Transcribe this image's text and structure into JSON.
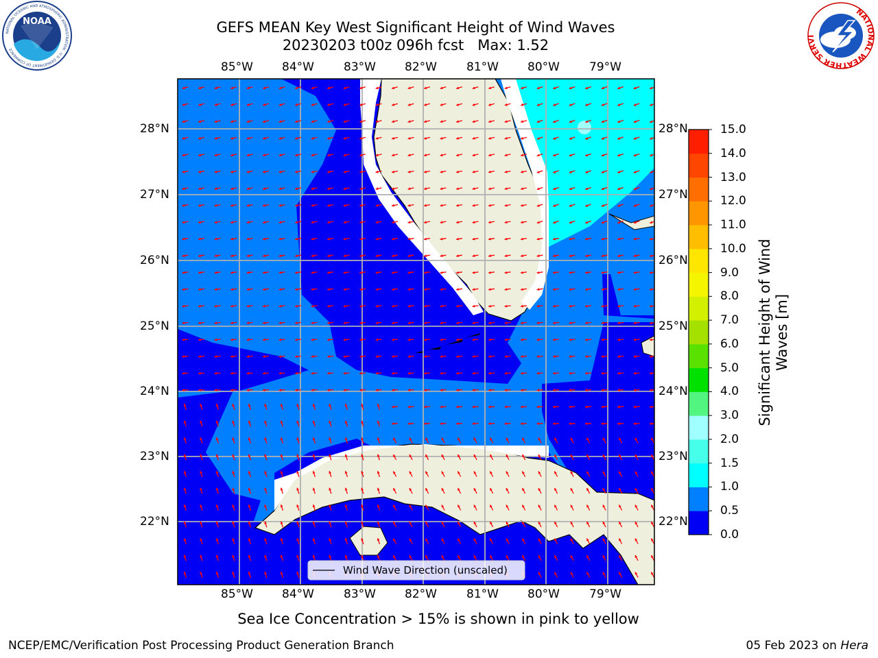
{
  "title_line1": "GEFS MEAN Key West Significant Height of Wind Waves",
  "title_line2": "20230203 t00z 096h fcst   Max: 1.52",
  "longitude_labels": [
    "85°W",
    "84°W",
    "83°W",
    "82°W",
    "81°W",
    "80°W",
    "79°W"
  ],
  "latitude_labels": [
    "28°N",
    "27°N",
    "26°N",
    "25°N",
    "24°N",
    "23°N",
    "22°N"
  ],
  "legend_label": "Wind Wave Direction (unscaled)",
  "colorbar": {
    "title": "Significant Height of Wind Waves [m]",
    "ticks": [
      "0.0",
      "0.5",
      "1.0",
      "1.5",
      "2.0",
      "3.0",
      "4.0",
      "5.0",
      "6.0",
      "7.0",
      "8.0",
      "9.0",
      "10.0",
      "11.0",
      "12.0",
      "13.0",
      "14.0",
      "15.0"
    ],
    "colors": [
      "#0000f5",
      "#0080ff",
      "#00ffff",
      "#46ffea",
      "#a0ffff",
      "#52f57f",
      "#00e100",
      "#5ae100",
      "#a5e100",
      "#d2f000",
      "#f5f500",
      "#ffe600",
      "#ffbe00",
      "#ff9600",
      "#ff6e00",
      "#ff4600",
      "#ff1e00"
    ]
  },
  "sea_ice_note": "Sea Ice Concentration > 15% is shown in pink to yellow",
  "footer_left": "NCEP/EMC/Verification Post Processing Product Generation Branch",
  "footer_date": "05 Feb 2023 on ",
  "footer_host": "Hera",
  "logos": {
    "noaa_text": "NOAA",
    "noaa_ring": "NATIONAL OCEANIC AND ATMOSPHERIC ADMINISTRATION · U.S. DEPARTMENT OF COMMERCE",
    "nws_ring": "NATIONAL WEATHER SERVICE"
  },
  "colors": {
    "land": "#efefde",
    "band_0_0_5": "#0000f5",
    "band_0_5_1_0": "#0080ff",
    "band_1_0_1_5": "#00ffff",
    "arrow": "#ff0000",
    "grid": "#b0b0b0"
  }
}
